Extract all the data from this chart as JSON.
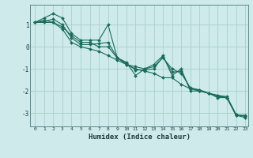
{
  "xlabel": "Humidex (Indice chaleur)",
  "ylabel": "",
  "background_color": "#ceeaea",
  "grid_color": "#aacfcf",
  "line_color": "#1a6b5a",
  "marker_color": "#1a6b5a",
  "xlim": [
    -0.5,
    23.3
  ],
  "ylim": [
    -3.6,
    1.9
  ],
  "yticks": [
    1,
    0,
    -1,
    -2,
    -3
  ],
  "xticks": [
    0,
    1,
    2,
    3,
    4,
    5,
    6,
    7,
    8,
    9,
    10,
    11,
    12,
    13,
    14,
    15,
    16,
    17,
    18,
    19,
    20,
    21,
    22,
    23
  ],
  "series": [
    [
      1.1,
      1.3,
      1.5,
      1.3,
      0.6,
      0.3,
      0.3,
      0.3,
      1.0,
      -0.5,
      -0.7,
      -1.3,
      -1.0,
      -0.8,
      -0.4,
      -1.3,
      -1.0,
      -2.0,
      -2.0,
      -2.1,
      -2.3,
      -2.3,
      -3.1,
      -3.1
    ],
    [
      1.1,
      1.1,
      1.1,
      0.8,
      0.2,
      0.0,
      -0.1,
      -0.2,
      -0.4,
      -0.6,
      -0.8,
      -1.0,
      -1.1,
      -1.2,
      -1.4,
      -1.4,
      -1.7,
      -1.9,
      -2.0,
      -2.1,
      -2.2,
      -2.3,
      -3.1,
      -3.2
    ],
    [
      1.1,
      1.2,
      1.1,
      0.9,
      0.5,
      0.2,
      0.2,
      0.0,
      0.0,
      -0.5,
      -0.8,
      -0.9,
      -1.0,
      -0.9,
      -0.5,
      -1.0,
      -1.2,
      -1.85,
      -1.95,
      -2.1,
      -2.2,
      -2.25,
      -3.05,
      -3.15
    ],
    [
      1.1,
      1.15,
      1.25,
      1.0,
      0.4,
      0.1,
      0.1,
      0.15,
      0.2,
      -0.5,
      -0.75,
      -1.05,
      -1.05,
      -1.0,
      -0.45,
      -1.15,
      -1.1,
      -1.9,
      -1.95,
      -2.1,
      -2.25,
      -2.3,
      -3.08,
      -3.12
    ]
  ]
}
